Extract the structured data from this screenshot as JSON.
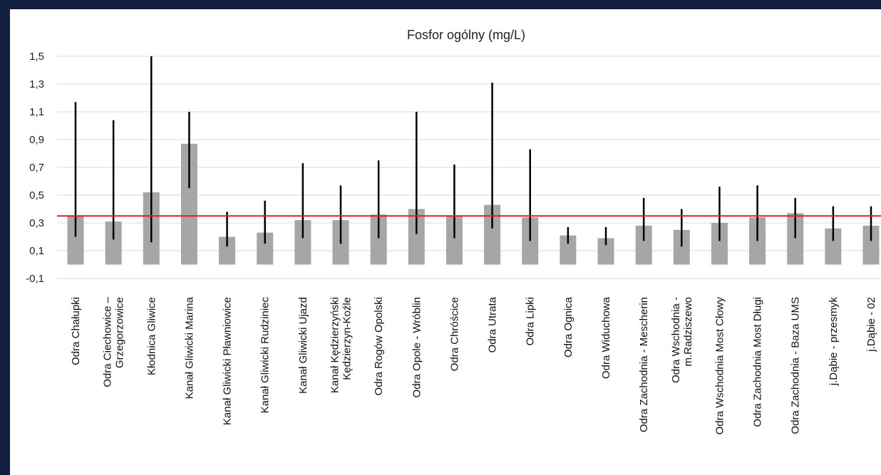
{
  "chart_data": {
    "type": "bar",
    "title": "Fosfor ogólny (mg/L)",
    "xlabel": "",
    "ylabel": "",
    "ylim": [
      -0.1,
      1.5
    ],
    "yticks": [
      "1,5",
      "1,3",
      "1,1",
      "0,9",
      "0,7",
      "0,5",
      "0,3",
      "0,1",
      "-0,1"
    ],
    "ytick_values": [
      1.5,
      1.3,
      1.1,
      0.9,
      0.7,
      0.5,
      0.3,
      0.1,
      -0.1
    ],
    "grid": true,
    "reference_line": 0.35,
    "categories": [
      [
        "Odra Chałupki"
      ],
      [
        "Odra Ciechowice –",
        "Grzegorzowice"
      ],
      [
        "Kłodnica Gliwice"
      ],
      [
        "Kanał Gliwicki Marina"
      ],
      [
        "Kanał Gliwicki Pławniowice"
      ],
      [
        "Kanał Gliwicki Rudziniec"
      ],
      [
        "Kanał Gliwicki Ujazd"
      ],
      [
        "Kanał Kędzierzyński",
        "Kędzierzyn-Koźle"
      ],
      [
        "Odra Rogów Opolski"
      ],
      [
        "Odra Opole - Wróblin"
      ],
      [
        "Odra Chróścice"
      ],
      [
        "Odra Utrata"
      ],
      [
        "Odra Lipki"
      ],
      [
        "Odra Ognica"
      ],
      [
        "Odra Widuchowa"
      ],
      [
        "Odra Zachodnia - Mescherin"
      ],
      [
        "Odra Wschodnia -",
        "m.Radziszewo"
      ],
      [
        "Odra Wschodnia Most Cłowy"
      ],
      [
        "Odra Zachodnia Most Długi"
      ],
      [
        "Odra Zachodnia  - Baza UMS"
      ],
      [
        "j.Dąbie - przesmyk"
      ],
      [
        "j.Dąbie - 02"
      ]
    ],
    "values": [
      0.35,
      0.31,
      0.52,
      0.87,
      0.2,
      0.23,
      0.32,
      0.32,
      0.36,
      0.4,
      0.35,
      0.43,
      0.34,
      0.21,
      0.19,
      0.28,
      0.25,
      0.3,
      0.34,
      0.37,
      0.26,
      0.28
    ],
    "error_low": [
      0.2,
      0.18,
      0.16,
      0.55,
      0.13,
      0.15,
      0.19,
      0.15,
      0.19,
      0.22,
      0.19,
      0.26,
      0.17,
      0.15,
      0.14,
      0.17,
      0.13,
      0.17,
      0.17,
      0.19,
      0.17,
      0.17
    ],
    "error_high": [
      1.17,
      1.04,
      1.5,
      1.1,
      0.38,
      0.46,
      0.73,
      0.57,
      0.75,
      1.1,
      0.72,
      1.31,
      0.83,
      0.27,
      0.27,
      0.48,
      0.4,
      0.56,
      0.57,
      0.48,
      0.42,
      0.42
    ],
    "colors": {
      "bar": "#a6a6a6",
      "error": "#000000",
      "reference": "#e02020",
      "grid": "#d9d9d9"
    }
  }
}
